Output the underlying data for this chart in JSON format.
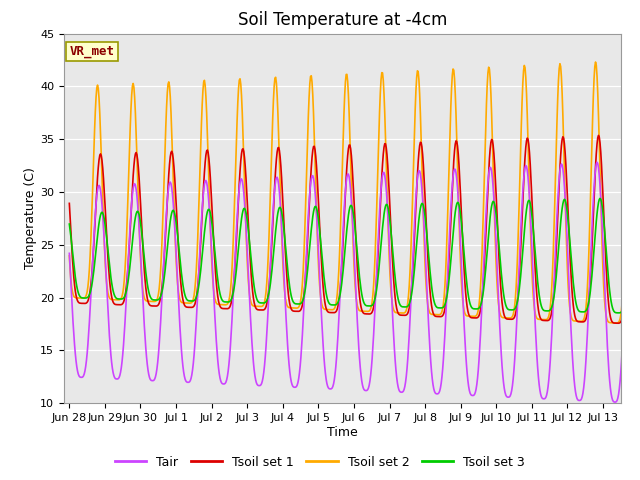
{
  "title": "Soil Temperature at -4cm",
  "xlabel": "Time",
  "ylabel": "Temperature (C)",
  "ylim": [
    10,
    45
  ],
  "annotation": "VR_met",
  "legend": [
    "Tair",
    "Tsoil set 1",
    "Tsoil set 2",
    "Tsoil set 3"
  ],
  "colors": [
    "#cc44ff",
    "#dd0000",
    "#ffaa00",
    "#00cc00"
  ],
  "background_color": "#e8e8e8",
  "plot_bg_color": "#e8e8e8",
  "xtick_labels": [
    "Jun 28",
    "Jun 29",
    "Jun 30",
    "Jul 1",
    "Jul 2",
    "Jul 3",
    "Jul 4",
    "Jul 5",
    "Jul 6",
    "Jul 7",
    "Jul 8",
    "Jul 9",
    "Jul 10",
    "Jul 11",
    "Jul 12",
    "Jul 13"
  ],
  "xtick_positions": [
    0,
    1,
    2,
    3,
    4,
    5,
    6,
    7,
    8,
    9,
    10,
    11,
    12,
    13,
    14,
    15
  ],
  "grid_color": "#ffffff",
  "yticks": [
    10,
    15,
    20,
    25,
    30,
    35,
    40,
    45
  ],
  "title_fontsize": 12,
  "label_fontsize": 9,
  "tick_fontsize": 8,
  "n_days": 16,
  "hours_per_day": 48,
  "tair_mean": 21.5,
  "tair_amp_start": 9.0,
  "tair_amp_end": 11.5,
  "tair_peak_hour": 14,
  "tsoil1_mean": 26.5,
  "tsoil1_amp_start": 7.0,
  "tsoil1_amp_end": 9.0,
  "tsoil1_peak_hour": 15,
  "tsoil2_mean": 30.0,
  "tsoil2_amp_start": 10.0,
  "tsoil2_amp_end": 12.5,
  "tsoil2_peak_hour": 13,
  "tsoil3_mean": 24.0,
  "tsoil3_amp_start": 4.0,
  "tsoil3_amp_end": 5.5,
  "tsoil3_peak_hour": 16
}
